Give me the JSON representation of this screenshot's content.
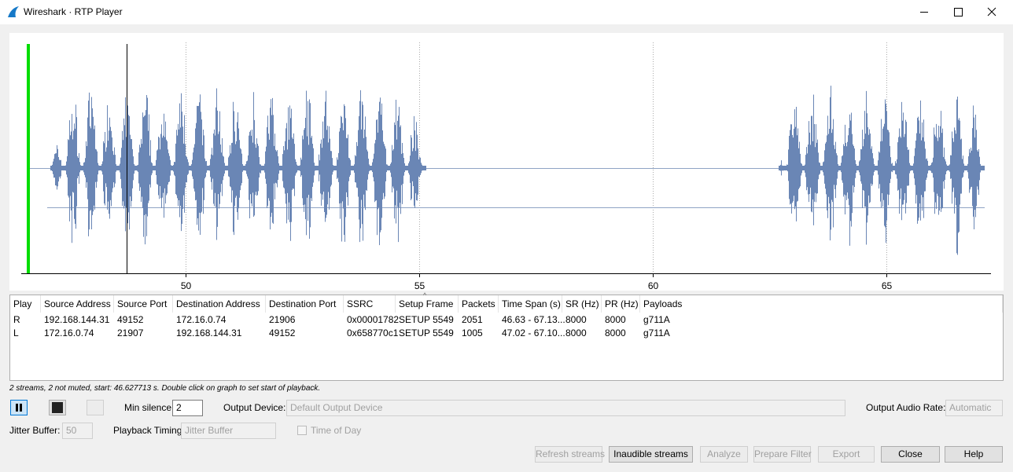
{
  "window": {
    "title": "Wireshark · RTP Player"
  },
  "graph": {
    "xlim": [
      46.48,
      67.24
    ],
    "xticks": [
      50,
      55,
      60,
      65
    ],
    "grid": true
  },
  "table": {
    "headers": [
      "Play",
      "Source Address",
      "Source Port",
      "Destination Address",
      "Destination Port",
      "SSRC",
      "Setup Frame",
      "Packets",
      "Time Span (s)",
      "SR (Hz)",
      "PR (Hz)",
      "Payloads"
    ],
    "rows": [
      [
        "R",
        "192.168.144.31",
        "49152",
        "172.16.0.74",
        "21906",
        "0x00001782",
        "SETUP 5549",
        "2051",
        "46.63 - 67.13...",
        "8000",
        "8000",
        "g711A"
      ],
      [
        "L",
        "172.16.0.74",
        "21907",
        "192.168.144.31",
        "49152",
        "0x658770c1",
        "SETUP 5549",
        "1005",
        "47.02 - 67.10...",
        "8000",
        "8000",
        "g711A"
      ]
    ]
  },
  "status": "2 streams, 2 not muted, start: 46.627713 s. Double click on graph to set start of playback.",
  "controls": {
    "min_silence_label": "Min silence:",
    "min_silence": "2",
    "output_device_label": "Output Device:",
    "output_device": "Default Output Device",
    "output_audio_rate_label": "Output Audio Rate:",
    "output_audio_rate": "Automatic",
    "jitter_buffer_label": "Jitter Buffer:",
    "jitter_buffer": "50",
    "playback_timing_label": "Playback Timing:",
    "playback_timing": "Jitter Buffer",
    "time_of_day": "Time of Day"
  },
  "buttons": [
    "Refresh streams",
    "Inaudible streams",
    "Analyze",
    "Prepare Filter",
    "Export",
    "Close",
    "Help"
  ]
}
